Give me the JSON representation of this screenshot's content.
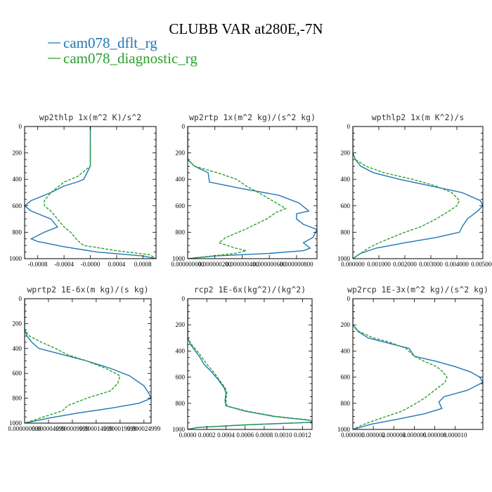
{
  "title": "CLUBB VAR at280E,-7N",
  "legend": [
    {
      "label": "cam078_dflt_rg",
      "color": "#1f77b4"
    },
    {
      "label": "cam078_diagnostic_rg",
      "color": "#2ca02c"
    }
  ],
  "chart_data": [
    {
      "type": "line",
      "title": "wp2thlp   1x(m^2 K)/s^2",
      "xlim": [
        -0.001,
        0.001
      ],
      "ylim": [
        1000,
        0
      ],
      "xticks": [
        "-0.0008",
        "-0.0004",
        "-0.0000",
        "0.0004",
        "0.0008"
      ],
      "yticks": [
        "0",
        "200",
        "400",
        "600",
        "800",
        "1000"
      ],
      "series": [
        {
          "name": "cam078_dflt_rg",
          "y": [
            0,
            300,
            400,
            420,
            450,
            500,
            560,
            600,
            640,
            700,
            760,
            800,
            850,
            870,
            910,
            950,
            980,
            1000
          ],
          "values": [
            0,
            0,
            -0.0001,
            -0.0002,
            -0.0004,
            -0.0006,
            -0.0009,
            -0.001,
            -0.0009,
            -0.0006,
            -0.0005,
            -0.0007,
            -0.0009,
            -0.0008,
            -0.0004,
            0.0001,
            0.0008,
            0.001
          ]
        },
        {
          "name": "cam078_diagnostic_rg",
          "y": [
            0,
            300,
            340,
            380,
            420,
            460,
            500,
            560,
            600,
            640,
            700,
            760,
            800,
            860,
            900,
            940,
            970,
            1000
          ],
          "values": [
            0,
            0,
            -0.0001,
            -0.0002,
            -0.0004,
            -0.0005,
            -0.0006,
            -0.0007,
            -0.0007,
            -0.0006,
            -0.0005,
            -0.0004,
            -0.0003,
            -0.0002,
            -0.0001,
            0.0004,
            0.0009,
            0.001
          ]
        }
      ]
    },
    {
      "type": "line",
      "title": "wp2rtp   1x(m^2 kg)/(s^2 kg)",
      "xlim": [
        0,
        9.5e-07
      ],
      "ylim": [
        1000,
        0
      ],
      "xticks": [
        "0.000000000",
        "0.000000200",
        "0.000000400",
        "0.000000600",
        "0.000000800"
      ],
      "yticks": [
        "0",
        "200",
        "400",
        "600",
        "800",
        "1000"
      ],
      "series": [
        {
          "name": "cam078_dflt_rg",
          "y": [
            0,
            250,
            300,
            350,
            420,
            470,
            520,
            580,
            640,
            660,
            700,
            740,
            780,
            840,
            880,
            920,
            940,
            960,
            980,
            1000
          ],
          "values": [
            0,
            0,
            5e-08,
            1.5e-07,
            1.6e-07,
            4e-07,
            6.7e-07,
            8.2e-07,
            8.9e-07,
            8e-07,
            8e-07,
            8.5e-07,
            9.5e-07,
            9.2e-07,
            8.5e-07,
            9e-07,
            8.5e-07,
            6e-07,
            2e-07,
            0
          ]
        },
        {
          "name": "cam078_diagnostic_rg",
          "y": [
            0,
            250,
            300,
            330,
            360,
            400,
            450,
            500,
            560,
            620,
            650,
            700,
            780,
            840,
            880,
            920,
            940,
            960,
            1000
          ],
          "values": [
            0,
            0,
            5e-08,
            1.5e-07,
            2.5e-07,
            3.6e-07,
            4.3e-07,
            5.2e-07,
            6.2e-07,
            7.2e-07,
            6.5e-07,
            5.8e-07,
            4.2e-07,
            2.8e-07,
            2.3e-07,
            3.5e-07,
            4.3e-07,
            3.5e-07,
            0
          ]
        }
      ]
    },
    {
      "type": "line",
      "title": "wpthlp2   1x(m K^2)/s",
      "xlim": [
        0,
        0.005
      ],
      "ylim": [
        1000,
        0
      ],
      "xticks": [
        "0.000000",
        "0.001000",
        "0.002000",
        "0.003000",
        "0.004000",
        "0.005000"
      ],
      "yticks": [
        "0",
        "200",
        "400",
        "600",
        "800",
        "1000"
      ],
      "series": [
        {
          "name": "cam078_dflt_rg",
          "y": [
            0,
            200,
            250,
            300,
            350,
            400,
            450,
            500,
            560,
            600,
            640,
            700,
            760,
            800,
            840,
            880,
            920,
            960,
            1000
          ],
          "values": [
            0,
            0,
            0.0001,
            0.0003,
            0.0008,
            0.0018,
            0.003,
            0.0042,
            0.0049,
            0.005,
            0.0048,
            0.0044,
            0.0042,
            0.0041,
            0.0032,
            0.002,
            0.0009,
            0.0003,
            0
          ]
        },
        {
          "name": "cam078_diagnostic_rg",
          "y": [
            0,
            200,
            250,
            300,
            350,
            400,
            450,
            500,
            560,
            600,
            640,
            700,
            760,
            800,
            840,
            880,
            920,
            960,
            1000
          ],
          "values": [
            0,
            0,
            0.0001,
            0.0005,
            0.0012,
            0.0023,
            0.0032,
            0.0038,
            0.0041,
            0.004,
            0.0037,
            0.0032,
            0.0026,
            0.002,
            0.0015,
            0.001,
            0.0006,
            0.0003,
            0
          ]
        }
      ]
    },
    {
      "type": "line",
      "title": "wprtp2   1E-6x(m kg)/(s kg)",
      "xlim": [
        0,
        2.65e-05
      ],
      "ylim": [
        1000,
        0
      ],
      "xticks": [
        "0.000000000",
        "0.000004999",
        "0.000009999",
        "0.000014999",
        "0.000019999",
        "0.000024999"
      ],
      "yticks": [
        "0",
        "200",
        "400",
        "600",
        "800",
        "1000"
      ],
      "series": [
        {
          "name": "cam078_dflt_rg",
          "y": [
            0,
            250,
            300,
            350,
            400,
            450,
            500,
            560,
            620,
            700,
            760,
            800,
            840,
            880,
            920,
            960,
            1000
          ],
          "values": [
            0,
            0,
            5e-07,
            1.5e-06,
            3e-06,
            8e-06,
            1.3e-05,
            1.8e-05,
            2.2e-05,
            2.5e-05,
            2.6e-05,
            2.65e-05,
            2.4e-05,
            1.8e-05,
            1.1e-05,
            5e-06,
            0
          ]
        },
        {
          "name": "cam078_diagnostic_rg",
          "y": [
            0,
            250,
            300,
            350,
            400,
            450,
            500,
            560,
            620,
            680,
            740,
            800,
            860,
            900,
            950,
            1000
          ],
          "values": [
            0,
            0,
            1e-06,
            3.5e-06,
            6.5e-06,
            9e-06,
            1.3e-05,
            1.7e-05,
            2e-05,
            1.95e-05,
            1.8e-05,
            1.3e-05,
            9e-06,
            8e-06,
            4e-06,
            0
          ]
        }
      ]
    },
    {
      "type": "line",
      "title": "rcp2   1E-6x(kg^2)/(kg^2)",
      "xlim": [
        0,
        0.0013
      ],
      "ylim": [
        1000,
        0
      ],
      "xticks": [
        "0.0000",
        "0.0002",
        "0.0004",
        "0.0006",
        "0.0008",
        "0.0010",
        "0.0012"
      ],
      "yticks": [
        "0",
        "200",
        "400",
        "600",
        "800",
        "1000"
      ],
      "series": [
        {
          "name": "cam078_dflt_rg",
          "y": [
            0,
            300,
            350,
            400,
            450,
            500,
            560,
            620,
            680,
            720,
            780,
            820,
            860,
            900,
            930,
            945,
            965,
            985,
            1000
          ],
          "values": [
            0,
            0,
            3e-05,
            8e-05,
            0.00013,
            0.00017,
            0.00025,
            0.00032,
            0.00038,
            0.0004,
            0.00039,
            0.0004,
            0.0006,
            0.0009,
            0.00128,
            0.0013,
            0.0006,
            0.0001,
            0
          ]
        },
        {
          "name": "cam078_diagnostic_rg",
          "y": [
            0,
            300,
            350,
            400,
            450,
            500,
            560,
            620,
            680,
            720,
            780,
            820,
            860,
            900,
            930,
            945,
            965,
            985,
            1000
          ],
          "values": [
            0,
            0,
            4e-05,
            0.0001,
            0.00015,
            0.0002,
            0.00027,
            0.00033,
            0.00039,
            0.00041,
            0.0004,
            0.00041,
            0.00062,
            0.00092,
            0.0013,
            0.0013,
            0.0006,
            0.0001,
            0
          ]
        }
      ]
    },
    {
      "type": "line",
      "title": "wp2rcp   1E-3x(m^2 kg)/(s^2 kg)",
      "xlim": [
        0,
        1.27e-05
      ],
      "ylim": [
        1000,
        0
      ],
      "xticks": [
        "0.000000",
        "0.000002",
        "0.000004",
        "0.000006",
        "0.000008",
        "0.000010"
      ],
      "yticks": [
        "0",
        "200",
        "400",
        "600",
        "800",
        "1000"
      ],
      "series": [
        {
          "name": "cam078_dflt_rg",
          "y": [
            0,
            200,
            250,
            300,
            330,
            380,
            440,
            480,
            520,
            560,
            600,
            640,
            700,
            750,
            790,
            840,
            880,
            920,
            960,
            1000
          ],
          "values": [
            0,
            0,
            5e-07,
            1.5e-06,
            3e-06,
            5.5e-06,
            6e-06,
            8.2e-06,
            1e-05,
            1.15e-05,
            1.24e-05,
            1.27e-05,
            1.12e-05,
            8.9e-06,
            8.4e-06,
            8.7e-06,
            7e-06,
            4.5e-06,
            1.8e-06,
            0
          ]
        },
        {
          "name": "cam078_diagnostic_rg",
          "y": [
            0,
            200,
            250,
            300,
            330,
            380,
            440,
            480,
            520,
            560,
            600,
            640,
            700,
            760,
            800,
            860,
            900,
            940,
            970,
            1000
          ],
          "values": [
            0,
            0,
            6e-07,
            2e-06,
            3.5e-06,
            5.2e-06,
            6e-06,
            7e-06,
            8.2e-06,
            8.8e-06,
            9.2e-06,
            9e-06,
            8e-06,
            7e-06,
            6.2e-06,
            4.8e-06,
            3.3e-06,
            1.8e-06,
            8e-07,
            0
          ]
        }
      ]
    }
  ]
}
